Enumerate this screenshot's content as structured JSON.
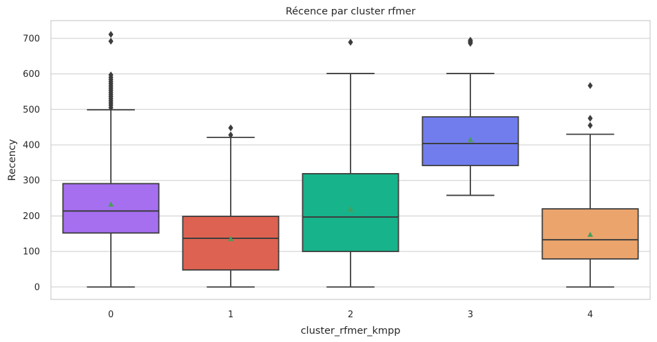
{
  "chart_data": {
    "type": "box",
    "title": "Récence par cluster rfmer",
    "xlabel": "cluster_rfmer_kmpp",
    "ylabel": "Recency",
    "ylim": [
      -35,
      750
    ],
    "yticks": [
      0,
      100,
      200,
      300,
      400,
      500,
      600,
      700
    ],
    "grid": true,
    "showmeans": true,
    "categories": [
      "0",
      "1",
      "2",
      "3",
      "4"
    ],
    "colors": [
      "#a56ff0",
      "#de6251",
      "#17b38a",
      "#717ded",
      "#eba46c"
    ],
    "boxes": [
      {
        "category": "0",
        "whislo": 0,
        "q1": 152,
        "median": 214,
        "q3": 291,
        "whishi": 499,
        "mean": 232,
        "fliers": [
          505,
          512,
          518,
          524,
          530,
          536,
          542,
          548,
          554,
          560,
          566,
          572,
          578,
          584,
          590,
          597,
          692,
          711
        ]
      },
      {
        "category": "1",
        "whislo": 0,
        "q1": 48,
        "median": 137,
        "q3": 199,
        "whishi": 421,
        "mean": 135,
        "fliers": [
          428,
          448
        ]
      },
      {
        "category": "2",
        "whislo": 0,
        "q1": 100,
        "median": 197,
        "q3": 319,
        "whishi": 601,
        "mean": 218,
        "fliers": [
          689
        ]
      },
      {
        "category": "3",
        "whislo": 258,
        "q1": 342,
        "median": 404,
        "q3": 479,
        "whishi": 601,
        "mean": 414,
        "fliers": [
          686,
          689,
          692,
          695
        ]
      },
      {
        "category": "4",
        "whislo": 0,
        "q1": 79,
        "median": 133,
        "q3": 220,
        "whishi": 430,
        "mean": 147,
        "fliers": [
          455,
          475,
          567
        ]
      }
    ]
  }
}
